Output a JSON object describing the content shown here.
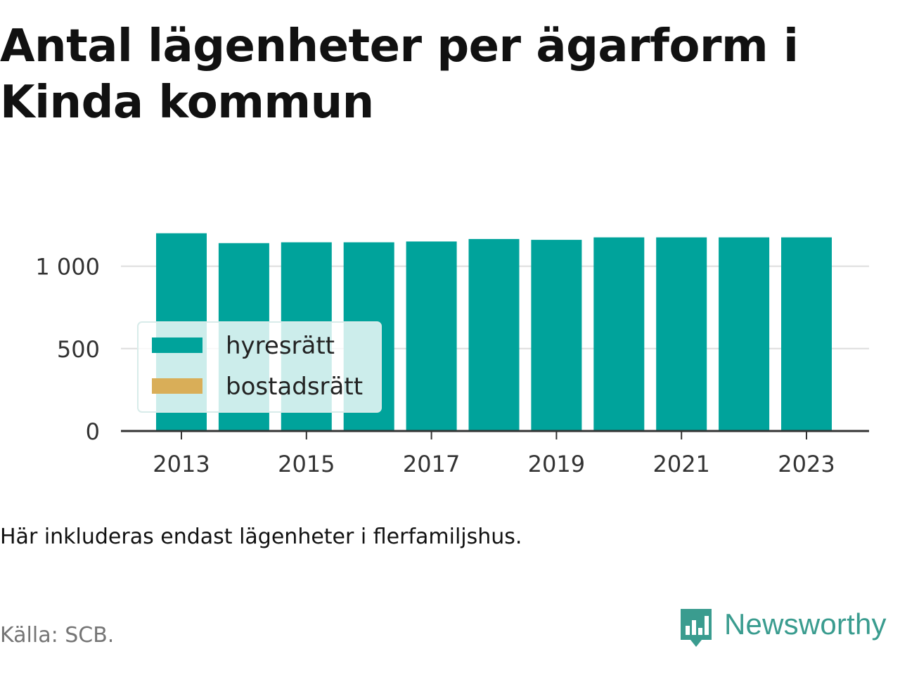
{
  "title": "Antal lägenheter per ägarform i Kinda kommun",
  "note": "Här inkluderas endast lägenheter i flerfamiljshus.",
  "source": "Källa: SCB.",
  "brand": {
    "name": "Newsworthy",
    "logo_icon": "newsworthy-logo-icon",
    "color": "#3a9c8f"
  },
  "chart_data": {
    "type": "bar",
    "stacked": true,
    "categories": [
      2013,
      2014,
      2015,
      2016,
      2017,
      2018,
      2019,
      2020,
      2021,
      2022,
      2023
    ],
    "x_ticks": [
      "2013",
      "2015",
      "2017",
      "2019",
      "2021",
      "2023"
    ],
    "series": [
      {
        "name": "hyresrätt",
        "color": "#00a39b",
        "values": [
          1200,
          1140,
          1145,
          1145,
          1150,
          1165,
          1160,
          1175,
          1175,
          1175,
          1175
        ]
      },
      {
        "name": "bostadsrätt",
        "color": "#d9ae58",
        "values": [
          0,
          0,
          0,
          0,
          0,
          0,
          0,
          0,
          0,
          0,
          0
        ]
      }
    ],
    "ylim": [
      0,
      1200
    ],
    "y_ticks": [
      {
        "value": 0,
        "label": "0"
      },
      {
        "value": 500,
        "label": "500"
      },
      {
        "value": 1000,
        "label": "1 000"
      }
    ],
    "grid": true,
    "legend_position": "bottom-left"
  }
}
